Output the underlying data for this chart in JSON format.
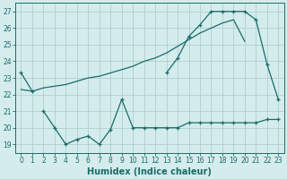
{
  "xlabel": "Humidex (Indice chaleur)",
  "bg_color": "#d4ecec",
  "grid_color": "#b0d0d0",
  "line_color": "#1a6b6b",
  "line1_x": [
    0,
    1,
    13,
    14,
    15,
    16,
    17,
    18,
    19,
    20,
    21,
    22,
    23
  ],
  "line1_y": [
    23.3,
    22.2,
    23.3,
    24.2,
    25.5,
    26.2,
    27.0,
    27.0,
    27.0,
    27.0,
    26.5,
    23.8,
    21.7
  ],
  "line2_x": [
    0,
    1,
    2,
    3,
    4,
    5,
    6,
    7,
    8,
    9,
    10,
    11,
    12,
    13,
    14,
    15,
    16,
    17,
    18,
    19,
    20
  ],
  "line2_y": [
    22.3,
    22.2,
    22.4,
    22.5,
    22.6,
    22.8,
    23.0,
    23.1,
    23.3,
    23.5,
    23.7,
    24.0,
    24.2,
    24.5,
    24.9,
    25.3,
    25.7,
    26.0,
    26.3,
    26.5,
    25.2
  ],
  "line3_x": [
    2,
    3,
    4,
    5,
    6,
    7,
    8,
    9,
    10,
    11,
    12,
    13,
    14,
    15,
    16,
    17,
    18,
    19,
    20,
    21,
    22,
    23
  ],
  "line3_y": [
    21.0,
    20.0,
    19.0,
    19.3,
    19.5,
    19.0,
    19.9,
    21.7,
    20.0,
    20.0,
    20.0,
    20.0,
    20.0,
    20.3,
    20.3,
    20.3,
    20.3,
    20.3,
    20.3,
    20.3,
    20.5,
    20.5
  ],
  "xlim": [
    -0.5,
    23.5
  ],
  "ylim": [
    18.5,
    27.5
  ],
  "yticks": [
    19,
    20,
    21,
    22,
    23,
    24,
    25,
    26,
    27
  ],
  "xticks": [
    0,
    1,
    2,
    3,
    4,
    5,
    6,
    7,
    8,
    9,
    10,
    11,
    12,
    13,
    14,
    15,
    16,
    17,
    18,
    19,
    20,
    21,
    22,
    23
  ]
}
